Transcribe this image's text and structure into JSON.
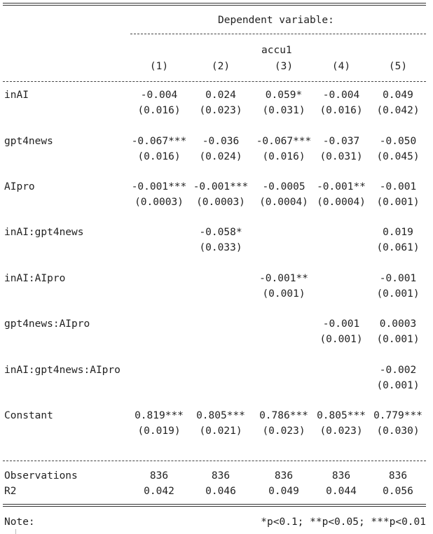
{
  "header": {
    "dependent_variable": "Dependent variable:",
    "depvar_name": "accu1",
    "columns": [
      "(1)",
      "(2)",
      "(3)",
      "(4)",
      "(5)"
    ]
  },
  "rows": [
    {
      "label": "inAI",
      "coefs": [
        "-0.004",
        "0.024",
        "0.059*",
        "-0.004",
        "0.049"
      ],
      "ses": [
        "(0.016)",
        "(0.023)",
        "(0.031)",
        "(0.016)",
        "(0.042)"
      ]
    },
    {
      "label": "gpt4news",
      "coefs": [
        "-0.067***",
        "-0.036",
        "-0.067***",
        "-0.037",
        "-0.050"
      ],
      "ses": [
        "(0.016)",
        "(0.024)",
        "(0.016)",
        "(0.031)",
        "(0.045)"
      ]
    },
    {
      "label": "AIpro",
      "coefs": [
        "-0.001***",
        "-0.001***",
        "-0.0005",
        "-0.001**",
        "-0.001"
      ],
      "ses": [
        "(0.0003)",
        "(0.0003)",
        "(0.0004)",
        "(0.0004)",
        "(0.001)"
      ]
    },
    {
      "label": "inAI:gpt4news",
      "coefs": [
        "",
        "-0.058*",
        "",
        "",
        "0.019"
      ],
      "ses": [
        "",
        "(0.033)",
        "",
        "",
        "(0.061)"
      ]
    },
    {
      "label": "inAI:AIpro",
      "coefs": [
        "",
        "",
        "-0.001**",
        "",
        "-0.001"
      ],
      "ses": [
        "",
        "",
        "(0.001)",
        "",
        "(0.001)"
      ]
    },
    {
      "label": "gpt4news:AIpro",
      "coefs": [
        "",
        "",
        "",
        "-0.001",
        "0.0003"
      ],
      "ses": [
        "",
        "",
        "",
        "(0.001)",
        "(0.001)"
      ]
    },
    {
      "label": "inAI:gpt4news:AIpro",
      "coefs": [
        "",
        "",
        "",
        "",
        "-0.002"
      ],
      "ses": [
        "",
        "",
        "",
        "",
        "(0.001)"
      ]
    },
    {
      "label": "Constant",
      "coefs": [
        "0.819***",
        "0.805***",
        "0.786***",
        "0.805***",
        "0.779***"
      ],
      "ses": [
        "(0.019)",
        "(0.021)",
        "(0.023)",
        "(0.023)",
        "(0.030)"
      ]
    }
  ],
  "stats": [
    {
      "label": "Observations",
      "values": [
        "836",
        "836",
        "836",
        "836",
        "836"
      ]
    },
    {
      "label": "R2",
      "values": [
        "0.042",
        "0.046",
        "0.049",
        "0.044",
        "0.056"
      ]
    }
  ],
  "note": {
    "label": "Note:",
    "text": "*p<0.1; **p<0.05; ***p<0.01"
  }
}
